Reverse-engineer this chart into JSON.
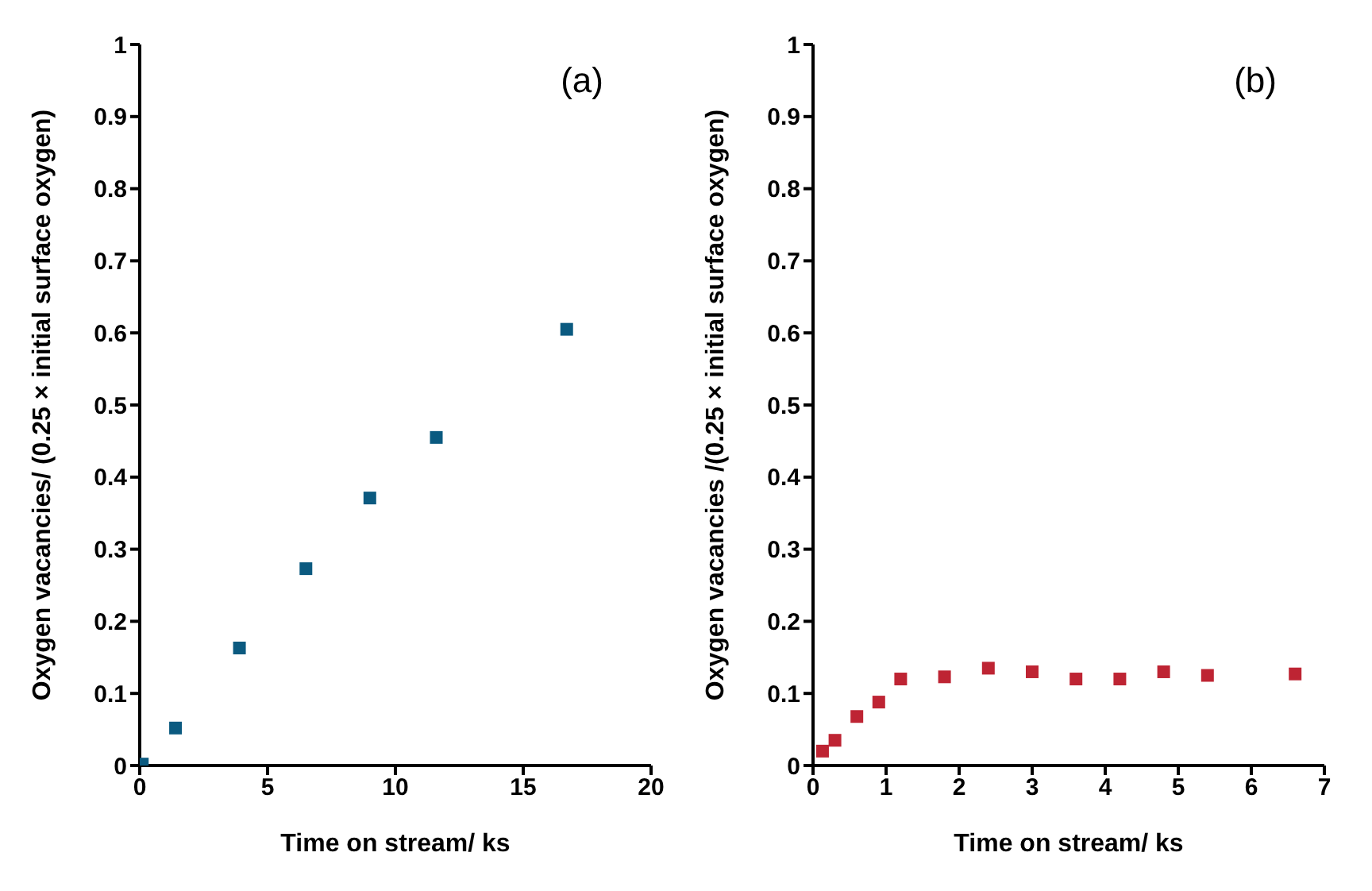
{
  "chart_data": [
    {
      "type": "scatter",
      "annotations": [
        "(a)"
      ],
      "xlabel": "Time on stream/ ks",
      "ylabel": "Oxygen vacancies/ (0.25 × initial surface oxygen)",
      "xlim": [
        0,
        20
      ],
      "xticks": [
        0,
        5,
        10,
        15,
        20
      ],
      "ylim": [
        0,
        1
      ],
      "yticks": [
        0,
        0.1,
        0.2,
        0.3,
        0.4,
        0.5,
        0.6,
        0.7,
        0.8,
        0.9,
        1
      ],
      "marker": "square",
      "series": [
        {
          "color": "#0b5a80",
          "x": [
            0.1,
            1.4,
            3.9,
            6.5,
            9,
            11.6,
            16.7
          ],
          "values": [
            0.002,
            0.052,
            0.163,
            0.273,
            0.371,
            0.455,
            0.605
          ]
        }
      ]
    },
    {
      "type": "scatter",
      "annotations": [
        "(b)"
      ],
      "xlabel": "Time on stream/ ks",
      "ylabel": "Oxygen vacancies /(0.25 × initial surface oxygen)",
      "xlim": [
        0,
        7
      ],
      "xticks": [
        0,
        1,
        2,
        3,
        4,
        5,
        6,
        7
      ],
      "ylim": [
        0,
        1
      ],
      "yticks": [
        0,
        0.1,
        0.2,
        0.3,
        0.4,
        0.5,
        0.6,
        0.7,
        0.8,
        0.9,
        1
      ],
      "marker": "square",
      "series": [
        {
          "color": "#be2433",
          "x": [
            0.13,
            0.3,
            0.6,
            0.9,
            1.2,
            1.8,
            2.4,
            3,
            3.6,
            4.2,
            4.8,
            5.4,
            6.6
          ],
          "values": [
            0.02,
            0.035,
            0.068,
            0.088,
            0.12,
            0.123,
            0.135,
            0.13,
            0.12,
            0.12,
            0.13,
            0.125,
            0.127
          ]
        }
      ]
    }
  ]
}
